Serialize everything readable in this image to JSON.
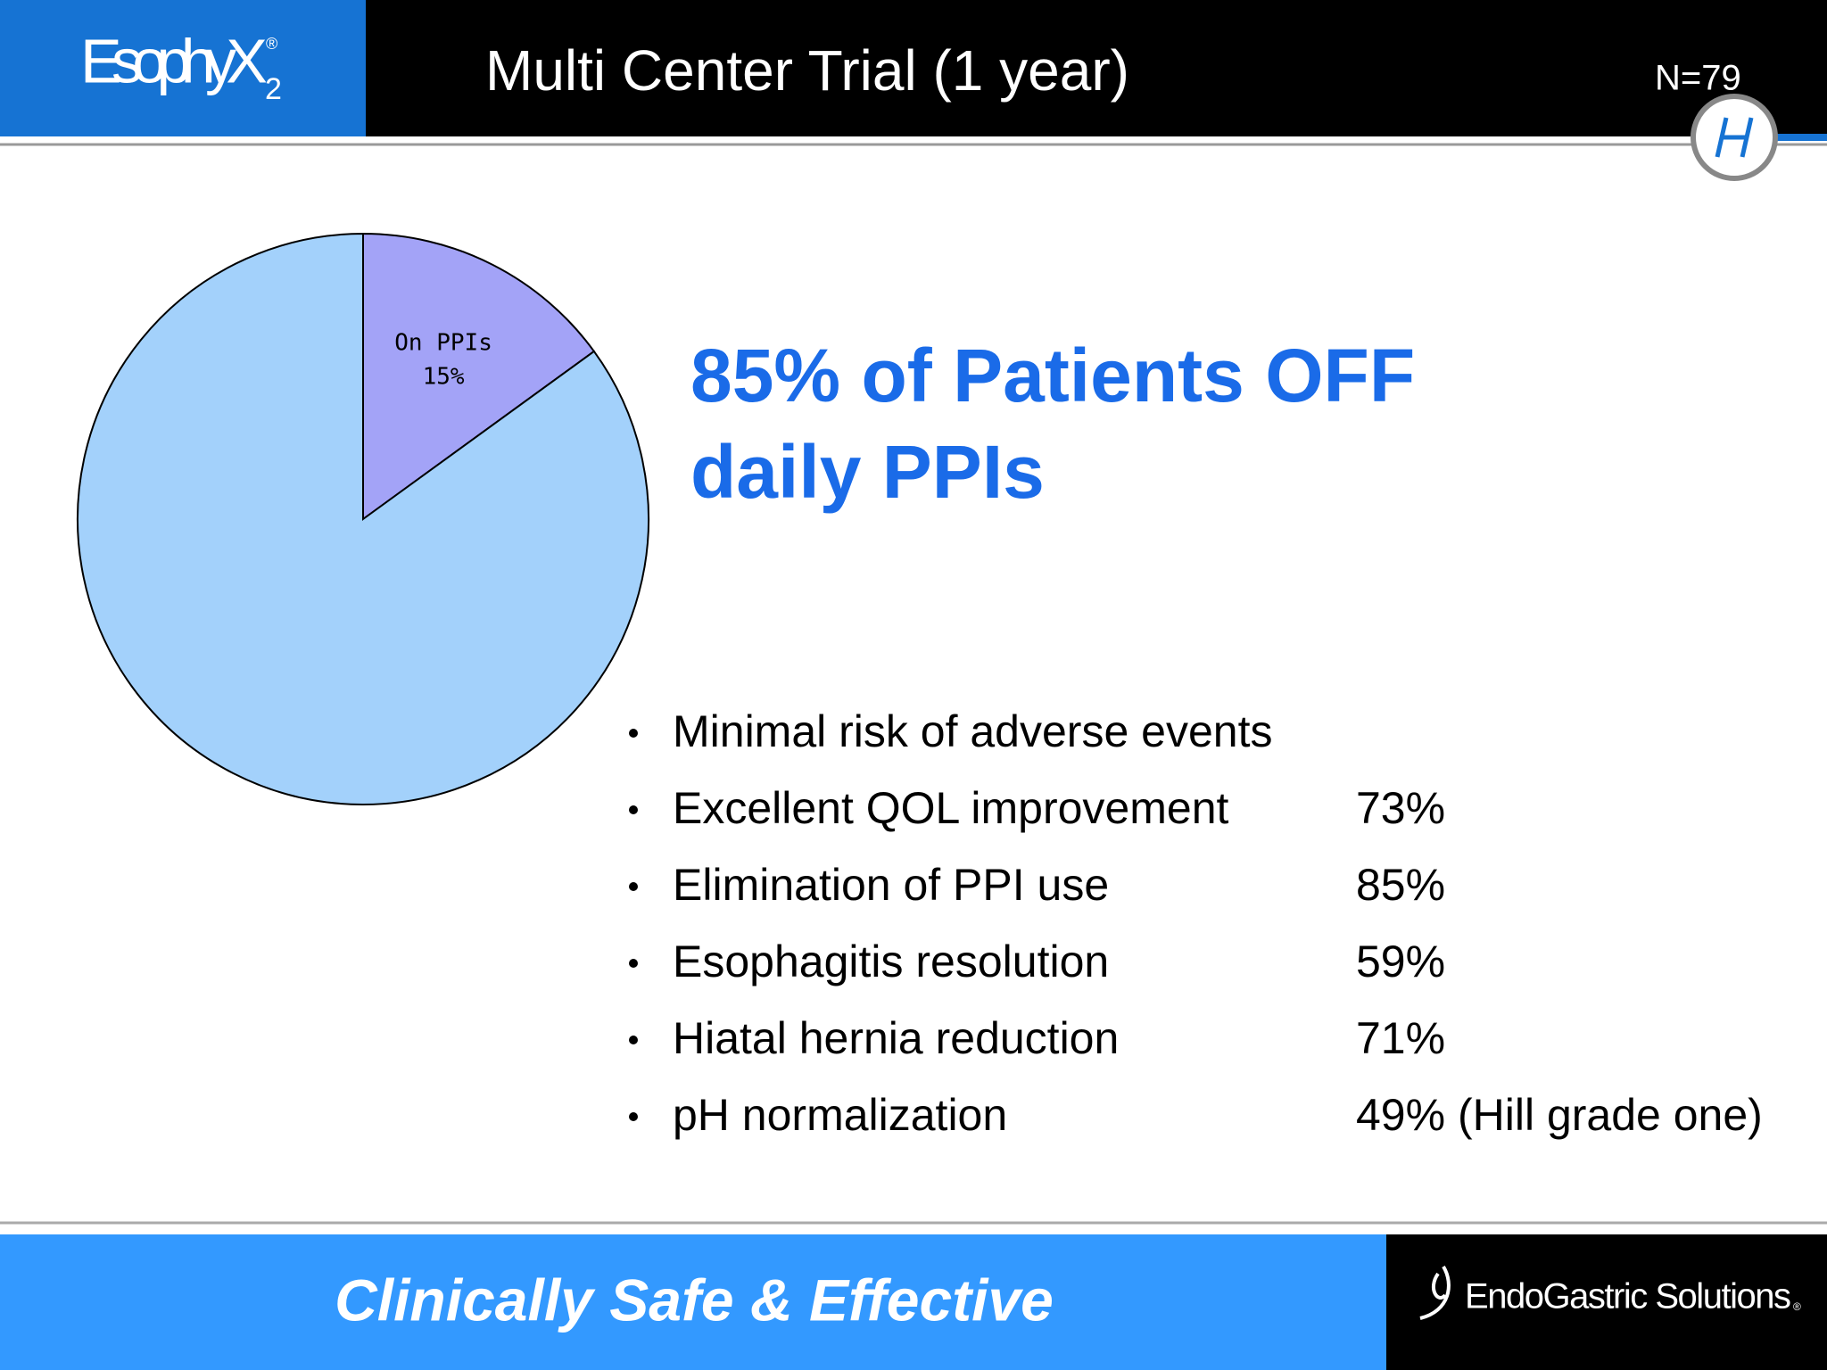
{
  "header": {
    "brand": "EsophyX",
    "brand_mark": "®",
    "brand_sub": "2",
    "title": "Multi Center Trial (1 year)",
    "note": "N=79"
  },
  "chart_data": {
    "type": "pie",
    "categories": [
      "On PPIs",
      null
    ],
    "values": [
      15,
      85
    ],
    "value_labels": [
      "15%",
      null
    ],
    "colors": [
      "#a3a3f7",
      "#a3d1fb"
    ]
  },
  "headline": [
    "85% of Patients OFF",
    "daily PPIs"
  ],
  "bullets": [
    {
      "label": "Minimal risk of adverse events"
    },
    {
      "label": "Excellent QOL improvement",
      "value": "73%"
    },
    {
      "label": "Elimination of PPI use",
      "value": "85%"
    },
    {
      "label": "Esophagitis resolution",
      "value": "59%"
    },
    {
      "label": "Hiatal hernia reduction",
      "value": "71%"
    },
    {
      "label": "pH normalization",
      "value": "49% (Hill grade one)"
    }
  ],
  "footer": {
    "tagline": "Clinically Safe & Effective",
    "company": "EndoGastric Solutions",
    "company_mark": "®"
  }
}
